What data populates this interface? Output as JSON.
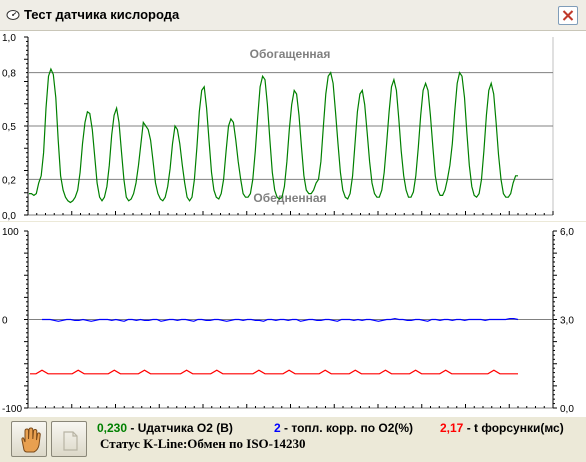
{
  "window": {
    "title": "Тест датчика кислорода",
    "title_icon": "speedometer-icon",
    "close_icon": "close-x-icon"
  },
  "colors": {
    "o2": "#008000",
    "fuel_corr": "#0000FF",
    "injector": "#FF0000",
    "ref_lines": "#808080"
  },
  "chart_data": [
    {
      "type": "line",
      "series": [
        {
          "name": "",
          "values": [
            0.12,
            0.12,
            0.11,
            0.12,
            0.18,
            0.22,
            0.35,
            0.6,
            0.78,
            0.82,
            0.79,
            0.66,
            0.42,
            0.22,
            0.14,
            0.1,
            0.08,
            0.07,
            0.08,
            0.1,
            0.14,
            0.24,
            0.4,
            0.52,
            0.58,
            0.57,
            0.48,
            0.33,
            0.18,
            0.1,
            0.08,
            0.1,
            0.16,
            0.28,
            0.45,
            0.56,
            0.6,
            0.52,
            0.36,
            0.2,
            0.1,
            0.08,
            0.09,
            0.12,
            0.18,
            0.28,
            0.4,
            0.52,
            0.5,
            0.48,
            0.42,
            0.3,
            0.18,
            0.12,
            0.09,
            0.08,
            0.1,
            0.16,
            0.26,
            0.4,
            0.5,
            0.48,
            0.4,
            0.28,
            0.18,
            0.1,
            0.08,
            0.1,
            0.2,
            0.38,
            0.58,
            0.7,
            0.72,
            0.6,
            0.42,
            0.24,
            0.14,
            0.1,
            0.09,
            0.12,
            0.2,
            0.36,
            0.5,
            0.54,
            0.52,
            0.42,
            0.3,
            0.2,
            0.12,
            0.1,
            0.1,
            0.12,
            0.2,
            0.36,
            0.55,
            0.72,
            0.78,
            0.76,
            0.62,
            0.42,
            0.24,
            0.14,
            0.1,
            0.09,
            0.1,
            0.16,
            0.3,
            0.48,
            0.62,
            0.7,
            0.68,
            0.56,
            0.38,
            0.22,
            0.14,
            0.12,
            0.12,
            0.14,
            0.18,
            0.2,
            0.3,
            0.5,
            0.68,
            0.78,
            0.8,
            0.74,
            0.58,
            0.4,
            0.24,
            0.14,
            0.1,
            0.09,
            0.12,
            0.22,
            0.4,
            0.58,
            0.68,
            0.7,
            0.62,
            0.46,
            0.3,
            0.18,
            0.12,
            0.1,
            0.1,
            0.14,
            0.24,
            0.4,
            0.58,
            0.72,
            0.76,
            0.7,
            0.54,
            0.36,
            0.22,
            0.14,
            0.1,
            0.1,
            0.13,
            0.22,
            0.38,
            0.56,
            0.7,
            0.74,
            0.7,
            0.56,
            0.38,
            0.22,
            0.14,
            0.11,
            0.11,
            0.14,
            0.2,
            0.28,
            0.4,
            0.58,
            0.74,
            0.8,
            0.78,
            0.66,
            0.46,
            0.28,
            0.16,
            0.11,
            0.1,
            0.12,
            0.2,
            0.36,
            0.56,
            0.7,
            0.74,
            0.68,
            0.52,
            0.34,
            0.2,
            0.12,
            0.1,
            0.1,
            0.12,
            0.18,
            0.22,
            0.22
          ]
        }
      ],
      "ylim": [
        0,
        1.0
      ],
      "ytick_labels": [
        "1,0",
        "0,8",
        "0,5",
        "0,2",
        "0,0"
      ],
      "yticks": [
        1.0,
        0.8,
        0.5,
        0.2,
        0.0
      ],
      "ref_lines": [
        0.8,
        0.5,
        0.2
      ],
      "annotations": {
        "rich": "Обогащенная",
        "lean": "Обедненная"
      }
    },
    {
      "type": "line",
      "series": [
        {
          "name": "",
          "axis": "left",
          "values": [
            0,
            0,
            0,
            -1,
            -2,
            -1,
            0,
            0,
            -1,
            -1,
            0,
            -1,
            -2,
            -1,
            0,
            0,
            0,
            -1,
            0,
            -1,
            -2,
            0,
            0,
            -1,
            0,
            -1,
            -1,
            0,
            0,
            -2,
            -1,
            0,
            0,
            -1,
            0,
            0,
            -1,
            -2,
            0,
            0,
            -1,
            -1,
            0,
            0,
            -1,
            -2,
            -1,
            0,
            0,
            -1,
            0,
            0,
            -1,
            -1,
            -2,
            0,
            0,
            -1,
            0,
            0,
            -1,
            0,
            0,
            -2,
            -1,
            0,
            0,
            -1,
            -1,
            0,
            0,
            -1,
            -2,
            0,
            0,
            0,
            -1,
            0,
            -1,
            0,
            0,
            -1,
            -2,
            -1,
            0,
            0,
            1,
            0,
            0,
            -1,
            -1,
            0,
            0,
            -1,
            -2,
            0,
            0,
            -1,
            0,
            0,
            -1,
            0,
            0,
            -1,
            0,
            0,
            0,
            0,
            -1,
            0,
            0,
            0,
            0,
            0,
            1,
            1,
            0
          ]
        },
        {
          "name": "",
          "axis": "right",
          "values": [
            1.16,
            1.16,
            1.28,
            1.16,
            1.16,
            1.16,
            1.16,
            1.16,
            1.28,
            1.16,
            1.16,
            1.16,
            1.16,
            1.16,
            1.28,
            1.16,
            1.16,
            1.16,
            1.16,
            1.28,
            1.16,
            1.16,
            1.16,
            1.16,
            1.16,
            1.16,
            1.28,
            1.16,
            1.16,
            1.16,
            1.16,
            1.28,
            1.16,
            1.16,
            1.16,
            1.16,
            1.16,
            1.16,
            1.28,
            1.16,
            1.16,
            1.16,
            1.16,
            1.28,
            1.16,
            1.16,
            1.16,
            1.16,
            1.16,
            1.28,
            1.16,
            1.16,
            1.16,
            1.16,
            1.28,
            1.16,
            1.16,
            1.16,
            1.16,
            1.28,
            1.16,
            1.16,
            1.16,
            1.16,
            1.28,
            1.16,
            1.16,
            1.16,
            1.16,
            1.28,
            1.16,
            1.16,
            1.16,
            1.16,
            1.16,
            1.16,
            1.16,
            1.28,
            1.16,
            1.16,
            1.16,
            1.16
          ]
        }
      ],
      "ylim": [
        -100,
        100
      ],
      "ytick_labels": [
        "100",
        "0",
        "-100"
      ],
      "yticks": [
        100,
        0,
        -100
      ],
      "y2lim": [
        0,
        6.0
      ],
      "y2tick_labels": [
        "6,0",
        "3,0",
        "0,0"
      ],
      "y2ticks": [
        6.0,
        3.0,
        0.0
      ]
    }
  ],
  "legend": {
    "o2_value": "0,230",
    "o2_label": " - Uдатчика O2 (В)",
    "fuel_value": "2",
    "fuel_label": " - топл. корр. по O2(%)",
    "inj_value": "2,17",
    "inj_label": " - t форсунки(мс)"
  },
  "status": {
    "text": "Статус K-Line:Обмен по ISO-14230"
  },
  "toolbar": {
    "hand_icon": "hand-icon",
    "page_icon": "page-icon"
  }
}
